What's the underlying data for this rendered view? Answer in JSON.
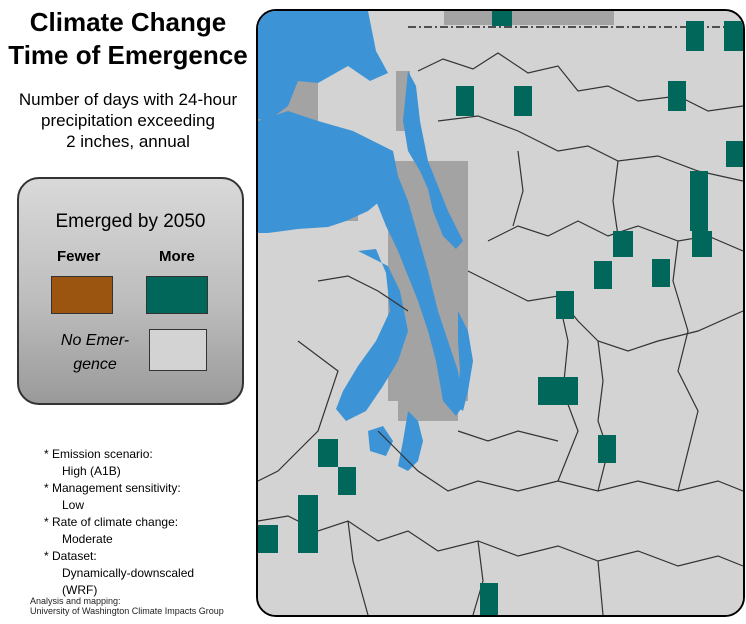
{
  "title": {
    "line1": "Climate Change",
    "line2": "Time of Emergence"
  },
  "subtitle": {
    "line1": "Number of days with 24-hour",
    "line2": "precipitation exceeding",
    "line3": "2 inches, annual"
  },
  "legend": {
    "title": "Emerged by 2050",
    "fewer_label": "Fewer",
    "more_label": "More",
    "no_emergence_line1": "No Emer-",
    "no_emergence_line2": "gence",
    "colors": {
      "fewer": "#9c5511",
      "more": "#00675a",
      "no_emergence": "#d3d3d3"
    }
  },
  "notes": [
    {
      "label": "* Emission scenario:",
      "value": "High (A1B)"
    },
    {
      "label": "* Management sensitivity:",
      "value": "Low"
    },
    {
      "label": "* Rate of climate change:",
      "value": "Moderate"
    },
    {
      "label": "* Dataset:",
      "value": "Dynamically-downscaled",
      "value2": "(WRF)"
    }
  ],
  "credit": {
    "line1": "Analysis and mapping:",
    "line2": "University of Washington Climate Impacts Group"
  },
  "map": {
    "water_color": "#3c94d6",
    "land_color": "#d3d3d3",
    "outside_area_color": "#a3a3a3",
    "emerged_more_color": "#00675a"
  }
}
